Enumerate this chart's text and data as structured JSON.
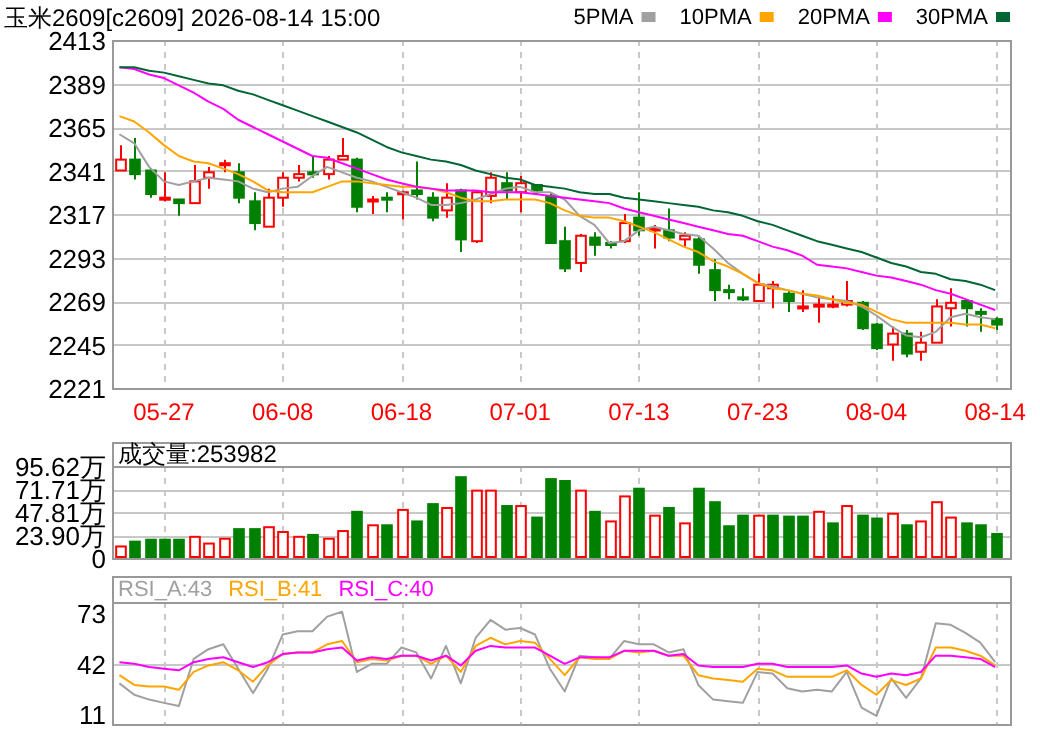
{
  "chart_data": [
    {
      "type": "candlestick",
      "title": "玉米2609[c2609] 2026-08-14 15:00",
      "categories": [
        null,
        null,
        null,
        "05-27",
        null,
        null,
        null,
        null,
        null,
        null,
        null,
        "06-08",
        null,
        null,
        null,
        null,
        null,
        null,
        null,
        "06-18",
        null,
        null,
        null,
        null,
        null,
        null,
        null,
        "07-01",
        null,
        null,
        null,
        null,
        null,
        null,
        null,
        "07-13",
        null,
        null,
        null,
        null,
        null,
        null,
        null,
        "07-23",
        null,
        null,
        null,
        null,
        null,
        null,
        null,
        "08-04",
        null,
        null,
        null,
        null,
        null,
        null,
        null,
        "08-14"
      ],
      "ohlc": [
        [
          2341,
          2355,
          2341,
          2347
        ],
        [
          2347,
          2359,
          2336,
          2339
        ],
        [
          2341,
          2342,
          2326,
          2328
        ],
        [
          2325,
          2340,
          2324,
          2326
        ],
        [
          2325,
          2325,
          2316,
          2323
        ],
        [
          2323,
          2344,
          2323,
          2335
        ],
        [
          2337,
          2343,
          2331,
          2340
        ],
        [
          2344,
          2347,
          2340,
          2345
        ],
        [
          2340,
          2345,
          2323,
          2326
        ],
        [
          2324,
          2329,
          2308,
          2312
        ],
        [
          2310,
          2331,
          2310,
          2326
        ],
        [
          2326,
          2340,
          2321,
          2337
        ],
        [
          2337,
          2344,
          2335,
          2339
        ],
        [
          2340,
          2349,
          2337,
          2339
        ],
        [
          2339,
          2349,
          2336,
          2347
        ],
        [
          2347,
          2359,
          2347,
          2349
        ],
        [
          2347,
          2348,
          2318,
          2321
        ],
        [
          2324,
          2327,
          2317,
          2325
        ],
        [
          2326,
          2329,
          2318,
          2325
        ],
        [
          2328,
          2330,
          2314,
          2329
        ],
        [
          2330,
          2346,
          2325,
          2328
        ],
        [
          2326,
          2329,
          2313,
          2315
        ],
        [
          2319,
          2334,
          2315,
          2326
        ],
        [
          2330,
          2331,
          2296,
          2303
        ],
        [
          2302,
          2330,
          2301,
          2329
        ],
        [
          2327,
          2340,
          2323,
          2337
        ],
        [
          2334,
          2340,
          2325,
          2330
        ],
        [
          2329,
          2338,
          2318,
          2334
        ],
        [
          2333,
          2333,
          2328,
          2330
        ],
        [
          2327,
          2329,
          2301,
          2301
        ],
        [
          2302,
          2310,
          2285,
          2287
        ],
        [
          2290,
          2306,
          2285,
          2305
        ],
        [
          2304,
          2307,
          2294,
          2300
        ],
        [
          2301,
          2302,
          2298,
          2300
        ],
        [
          2302,
          2317,
          2301,
          2312
        ],
        [
          2315,
          2329,
          2305,
          2308
        ],
        [
          2308,
          2311,
          2298,
          2309
        ],
        [
          2308,
          2320,
          2302,
          2304
        ],
        [
          2303,
          2307,
          2299,
          2305
        ],
        [
          2303,
          2305,
          2284,
          2289
        ],
        [
          2286,
          2292,
          2269,
          2275
        ],
        [
          2275,
          2278,
          2270,
          2274
        ],
        [
          2271,
          2276,
          2269,
          2270
        ],
        [
          2269,
          2284,
          2269,
          2278
        ],
        [
          2276,
          2280,
          2265,
          2278
        ],
        [
          2273,
          2275,
          2263,
          2269
        ],
        [
          2265,
          2275,
          2263,
          2266
        ],
        [
          2266,
          2272,
          2257,
          2267
        ],
        [
          2266,
          2272,
          2265,
          2267
        ],
        [
          2267,
          2280,
          2266,
          2269
        ],
        [
          2268,
          2269,
          2253,
          2254
        ],
        [
          2256,
          2257,
          2242,
          2243
        ],
        [
          2245,
          2255,
          2236,
          2251
        ],
        [
          2251,
          2253,
          2238,
          2240
        ],
        [
          2241,
          2252,
          2236,
          2246
        ],
        [
          2246,
          2270,
          2246,
          2266
        ],
        [
          2265,
          2276,
          2255,
          2268
        ],
        [
          2269,
          2270,
          2255,
          2265
        ],
        [
          2263,
          2265,
          2252,
          2262
        ],
        [
          2259,
          2260,
          2253,
          2256
        ]
      ],
      "colors": [
        "#ff0000",
        "#008000",
        "#008000",
        "#ff0000",
        "#008000",
        "#ff0000",
        "#ff0000",
        "#ff0000",
        "#008000",
        "#008000",
        "#ff0000",
        "#ff0000",
        "#ff0000",
        "#008000",
        "#ff0000",
        "#ff0000",
        "#008000",
        "#ff0000",
        "#008000",
        "#ff0000",
        "#008000",
        "#008000",
        "#ff0000",
        "#008000",
        "#ff0000",
        "#ff0000",
        "#008000",
        "#ff0000",
        "#008000",
        "#008000",
        "#008000",
        "#ff0000",
        "#008000",
        "#008000",
        "#ff0000",
        "#008000",
        "#ff0000",
        "#008000",
        "#ff0000",
        "#008000",
        "#008000",
        "#008000",
        "#008000",
        "#ff0000",
        "#ff0000",
        "#008000",
        "#ff0000",
        "#ff0000",
        "#ff0000",
        "#ff0000",
        "#008000",
        "#008000",
        "#ff0000",
        "#008000",
        "#ff0000",
        "#ff0000",
        "#ff0000",
        "#008000",
        "#008000",
        "#008000"
      ],
      "series": [
        {
          "name": "5PMA",
          "type": "line",
          "color": "#a0a0a0",
          "values": [
            2361,
            2356,
            2343,
            2335,
            2333,
            2335,
            2337,
            2336,
            2335,
            2331,
            2329,
            2331,
            2332,
            2338,
            2343,
            2340,
            2337,
            2335,
            2332,
            2329,
            2326,
            2322,
            2322,
            2323,
            2325,
            2328,
            2331,
            2332,
            2329,
            2329,
            2325,
            2316,
            2311,
            2301,
            2302,
            2308,
            2310,
            2308,
            2306,
            2305,
            2298,
            2290,
            2284,
            2279,
            2277,
            2275,
            2273,
            2271,
            2270,
            2269,
            2266,
            2261,
            2255,
            2250,
            2249,
            2252,
            2260,
            2262,
            2260,
            2259
          ]
        },
        {
          "name": "10PMA",
          "type": "line",
          "color": "#ffa500",
          "values": [
            2371,
            2368,
            2362,
            2355,
            2349,
            2346,
            2345,
            2342,
            2339,
            2335,
            2330,
            2329,
            2329,
            2329,
            2332,
            2335,
            2335,
            2334,
            2333,
            2332,
            2332,
            2331,
            2329,
            2326,
            2324,
            2324,
            2325,
            2325,
            2325,
            2323,
            2319,
            2316,
            2315,
            2315,
            2313,
            2310,
            2307,
            2303,
            2299,
            2296,
            2291,
            2288,
            2284,
            2279,
            2276,
            2275,
            2273,
            2272,
            2270,
            2268,
            2267,
            2263,
            2259,
            2257,
            2257,
            2257,
            2257,
            2256,
            2256,
            2254
          ]
        },
        {
          "name": "20PMA",
          "type": "line",
          "color": "#ff00ff",
          "values": [
            2398,
            2397,
            2394,
            2392,
            2388,
            2384,
            2379,
            2375,
            2369,
            2365,
            2361,
            2357,
            2353,
            2349,
            2348,
            2345,
            2342,
            2339,
            2336,
            2334,
            2332,
            2331,
            2330,
            2330,
            2330,
            2329,
            2329,
            2329,
            2328,
            2327,
            2326,
            2325,
            2324,
            2323,
            2320,
            2318,
            2316,
            2314,
            2312,
            2310,
            2308,
            2306,
            2305,
            2302,
            2299,
            2297,
            2294,
            2289,
            2288,
            2287,
            2285,
            2283,
            2282,
            2280,
            2278,
            2275,
            2273,
            2270,
            2267,
            2264
          ]
        },
        {
          "name": "30PMA",
          "type": "line",
          "color": "#006633",
          "values": [
            2398,
            2398,
            2396,
            2395,
            2393,
            2391,
            2389,
            2388,
            2385,
            2383,
            2380,
            2377,
            2374,
            2371,
            2368,
            2365,
            2362,
            2358,
            2354,
            2351,
            2349,
            2347,
            2346,
            2344,
            2341,
            2339,
            2337,
            2336,
            2333,
            2332,
            2331,
            2329,
            2328,
            2328,
            2326,
            2325,
            2324,
            2323,
            2322,
            2321,
            2319,
            2318,
            2316,
            2313,
            2311,
            2308,
            2305,
            2302,
            2300,
            2298,
            2296,
            2293,
            2290,
            2288,
            2285,
            2284,
            2281,
            2280,
            2278,
            2275
          ]
        }
      ],
      "ylim": [
        2221,
        2413
      ],
      "yticks": [
        2221,
        2245,
        2269,
        2293,
        2317,
        2341,
        2365,
        2389,
        2413
      ],
      "grid": true,
      "legend": "top right"
    },
    {
      "type": "bar",
      "title": "成交量:253982",
      "categories": [
        null,
        null,
        null,
        null,
        null,
        null,
        null,
        null,
        null,
        null,
        null,
        null,
        null,
        null,
        null,
        null,
        null,
        null,
        null,
        null,
        null,
        null,
        null,
        null,
        null,
        null,
        null,
        null,
        null,
        null,
        null,
        null,
        null,
        null,
        null,
        null,
        null,
        null,
        null,
        null,
        null,
        null,
        null,
        null,
        null,
        null,
        null,
        null,
        null,
        null,
        null,
        null,
        null,
        null,
        null,
        null,
        null,
        null,
        null,
        null
      ],
      "values": [
        12,
        17,
        19,
        19,
        19,
        22,
        15,
        20,
        30,
        30,
        32,
        27,
        22,
        24,
        20,
        28,
        48,
        34,
        34,
        50,
        38,
        56,
        52,
        84,
        70,
        70,
        54,
        54,
        42,
        82,
        80,
        70,
        48,
        38,
        64,
        72,
        44,
        52,
        36,
        72,
        58,
        33,
        44,
        44,
        44,
        43,
        43,
        48,
        36,
        54,
        44,
        41,
        46,
        34,
        38,
        58,
        42,
        36,
        34,
        25
      ],
      "colors": [
        "#ff0000",
        "#008000",
        "#008000",
        "#008000",
        "#008000",
        "#ff0000",
        "#ff0000",
        "#ff0000",
        "#008000",
        "#008000",
        "#ff0000",
        "#ff0000",
        "#ff0000",
        "#008000",
        "#ff0000",
        "#ff0000",
        "#008000",
        "#ff0000",
        "#008000",
        "#ff0000",
        "#008000",
        "#008000",
        "#ff0000",
        "#008000",
        "#ff0000",
        "#ff0000",
        "#008000",
        "#ff0000",
        "#008000",
        "#008000",
        "#008000",
        "#ff0000",
        "#008000",
        "#ff0000",
        "#ff0000",
        "#008000",
        "#ff0000",
        "#008000",
        "#ff0000",
        "#008000",
        "#008000",
        "#008000",
        "#008000",
        "#ff0000",
        "#008000",
        "#008000",
        "#008000",
        "#ff0000",
        "#008000",
        "#ff0000",
        "#008000",
        "#008000",
        "#ff0000",
        "#008000",
        "#ff0000",
        "#ff0000",
        "#ff0000",
        "#008000",
        "#008000",
        "#008000"
      ],
      "ylim": [
        0,
        95.62
      ],
      "yticks": [
        0,
        {
          "value": 23.9,
          "label": "23.90万"
        },
        {
          "value": 47.81,
          "label": "47.81万"
        },
        {
          "value": 71.71,
          "label": "71.71万"
        },
        {
          "value": 95.62,
          "label": "95.62万"
        }
      ],
      "grid": true,
      "tick_labels": "y"
    },
    {
      "type": "line",
      "categories": [
        null,
        null,
        null,
        null,
        null,
        null,
        null,
        null,
        null,
        null,
        null,
        null,
        null,
        null,
        null,
        null,
        null,
        null,
        null,
        null,
        null,
        null,
        null,
        null,
        null,
        null,
        null,
        null,
        null,
        null,
        null,
        null,
        null,
        null,
        null,
        null,
        null,
        null,
        null,
        null,
        null,
        null,
        null,
        null,
        null,
        null,
        null,
        null,
        null,
        null,
        null,
        null,
        null,
        null,
        null,
        null,
        null,
        null,
        null,
        null
      ],
      "series": [
        {
          "name": "RSI_A:43",
          "color": "#a0a0a0",
          "values": [
            30,
            23,
            20,
            18,
            16,
            45,
            51,
            54,
            39,
            24,
            39,
            60,
            62,
            62,
            71,
            74,
            37,
            42,
            42,
            52,
            49,
            33,
            53,
            30,
            58,
            69,
            63,
            64,
            60,
            39,
            25,
            47,
            46,
            45,
            56,
            54,
            54,
            49,
            51,
            29,
            20,
            19,
            18,
            37,
            36,
            27,
            25,
            26,
            25,
            37,
            15,
            10,
            33,
            21,
            33,
            67,
            66,
            61,
            55,
            43
          ]
        },
        {
          "name": "RSI_B:41",
          "color": "#ffa500",
          "values": [
            35,
            29,
            28,
            28,
            26,
            37,
            41,
            43,
            38,
            31,
            41,
            48,
            49,
            49,
            54,
            56,
            43,
            45,
            44,
            47,
            47,
            42,
            47,
            37,
            53,
            58,
            54,
            56,
            55,
            45,
            35,
            46,
            45,
            45,
            50,
            49,
            50,
            47,
            47,
            35,
            33,
            32,
            31,
            39,
            38,
            34,
            34,
            34,
            34,
            38,
            29,
            23,
            32,
            29,
            33,
            52,
            52,
            50,
            47,
            41
          ]
        },
        {
          "name": "RSI_C:40",
          "color": "#ff00ff",
          "values": [
            43,
            42,
            40,
            39,
            38,
            43,
            45,
            46,
            43,
            40,
            43,
            48,
            49,
            49,
            51,
            52,
            44,
            46,
            45,
            47,
            47,
            44,
            47,
            41,
            50,
            53,
            52,
            52,
            52,
            47,
            42,
            46,
            46,
            46,
            50,
            50,
            50,
            47,
            48,
            41,
            40,
            40,
            40,
            42,
            42,
            40,
            40,
            40,
            40,
            41,
            36,
            34,
            36,
            35,
            37,
            47,
            47,
            46,
            45,
            40
          ]
        }
      ],
      "ylim": [
        5,
        80
      ],
      "yticks": [
        11,
        42,
        73
      ],
      "grid": "x",
      "ref_lines": [
        {
          "axis": "y",
          "value": 42,
          "color": "#c8c8c8"
        }
      ],
      "legend": "top left",
      "tick_labels": "y"
    }
  ]
}
